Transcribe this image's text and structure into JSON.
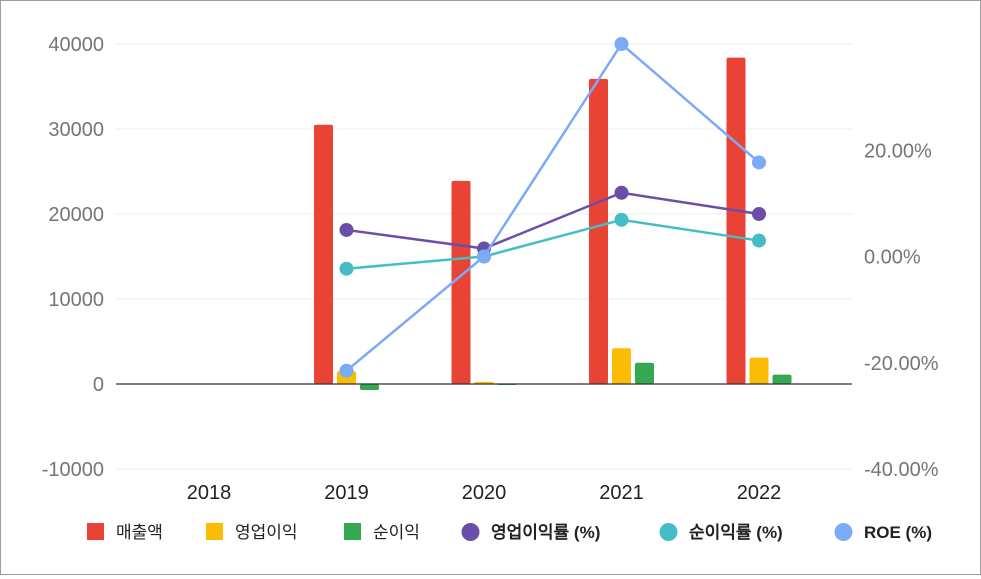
{
  "chart_data": {
    "type": "bar-line-combo",
    "categories": [
      "2018",
      "2019",
      "2020",
      "2021",
      "2022"
    ],
    "left_axis": {
      "ticks": [
        40000,
        30000,
        20000,
        10000,
        0,
        -10000
      ],
      "labels": [
        "40000",
        "30000",
        "20000",
        "10000",
        "0",
        "-10000"
      ],
      "range": [
        -10000,
        40000
      ]
    },
    "right_axis": {
      "ticks": [
        20,
        0,
        -20,
        -40
      ],
      "labels": [
        "20.00%",
        "0.00%",
        "-20.00%",
        "-40.00%"
      ],
      "range": [
        -40,
        40
      ]
    },
    "bar_series": [
      {
        "name": "매출액",
        "color": "#e84335",
        "values": [
          null,
          30500,
          23900,
          35900,
          38400
        ]
      },
      {
        "name": "영업이익",
        "color": "#fbbc05",
        "values": [
          null,
          1500,
          250,
          4200,
          3100
        ]
      },
      {
        "name": "순이익",
        "color": "#34a853",
        "values": [
          null,
          -700,
          0,
          2500,
          1100
        ]
      }
    ],
    "line_series": [
      {
        "name": "영업이익률 (%)",
        "color": "#6b4ea8",
        "values": [
          null,
          5.0,
          1.5,
          12.0,
          8.0
        ]
      },
      {
        "name": "순이익률 (%)",
        "color": "#46bdc6",
        "values": [
          null,
          -2.3,
          0.0,
          6.9,
          3.0
        ]
      },
      {
        "name": "ROE (%)",
        "color": "#7baaf7",
        "values": [
          null,
          -21.5,
          0.0,
          40.0,
          17.7
        ]
      }
    ],
    "grid": true,
    "legend_position": "bottom"
  }
}
